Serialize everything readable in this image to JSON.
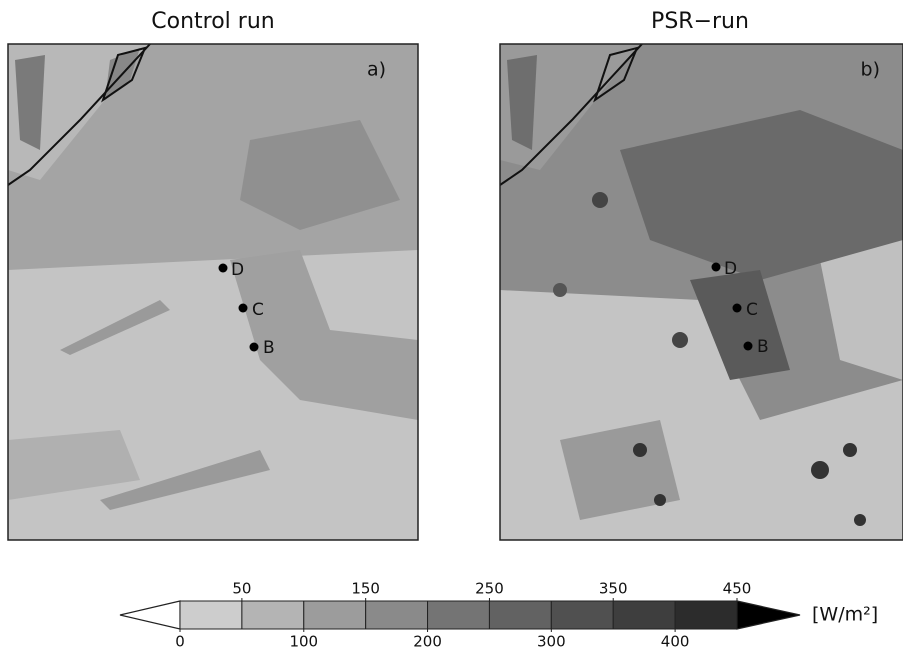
{
  "panels": [
    {
      "title": "Control run",
      "label": "a)",
      "stations": [
        "D",
        "C",
        "B"
      ]
    },
    {
      "title": "PSR−run",
      "label": "b)",
      "stations": [
        "D",
        "C",
        "B"
      ]
    }
  ],
  "colorbar": {
    "ticks": [
      0,
      50,
      100,
      150,
      200,
      250,
      300,
      350,
      400,
      450
    ],
    "colors": [
      "#cdcdcd",
      "#b4b4b4",
      "#9c9c9c",
      "#8a8a8a",
      "#747474",
      "#626262",
      "#505050",
      "#3e3e3e",
      "#2c2c2c"
    ],
    "under_color": "#ffffff",
    "over_color": "#000000",
    "unit": "[W/m²]"
  }
}
